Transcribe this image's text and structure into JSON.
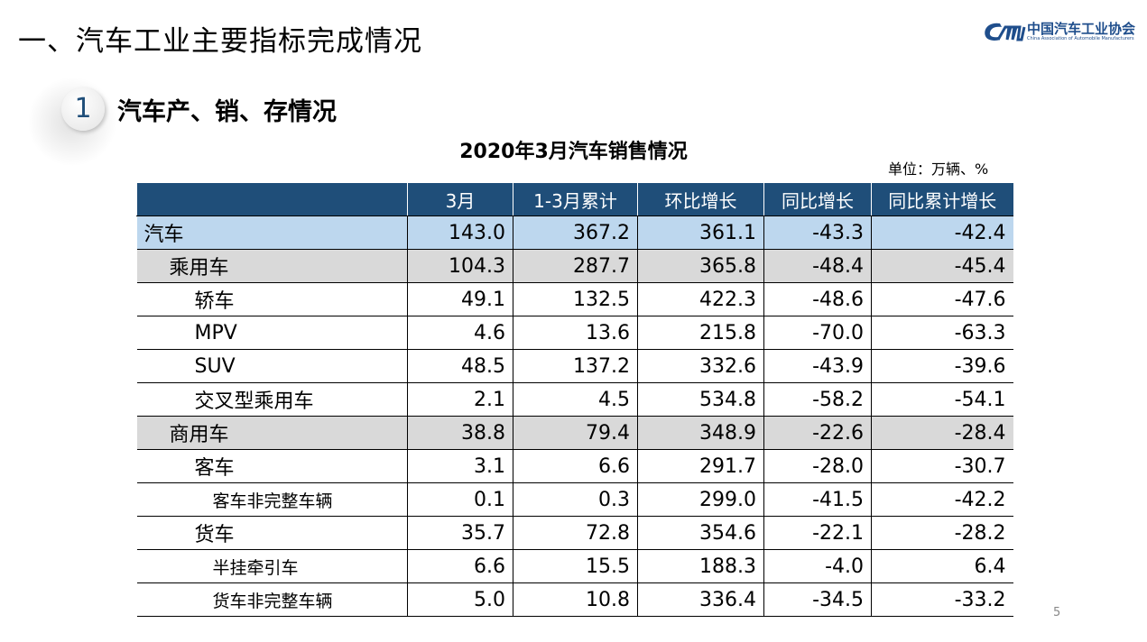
{
  "header": {
    "title": "一、汽车工业主要指标完成情况",
    "logo_cn": "中国汽车工业协会",
    "logo_en": "China Association of Automobile Manufacturers"
  },
  "section": {
    "number": "1",
    "title": "汽车产、销、存情况"
  },
  "table": {
    "title": "2020年3月汽车销售情况",
    "unit": "单位：万辆、%",
    "columns": [
      "",
      "3月",
      "1-3月累计",
      "环比增长",
      "同比增长",
      "同比累计增长"
    ],
    "rows": [
      {
        "name": "汽车",
        "level": 0,
        "values": [
          "143.0",
          "367.2",
          "361.1",
          "-43.3",
          "-42.4"
        ]
      },
      {
        "name": "乘用车",
        "level": 1,
        "values": [
          "104.3",
          "287.7",
          "365.8",
          "-48.4",
          "-45.4"
        ]
      },
      {
        "name": "轿车",
        "level": 2,
        "values": [
          "49.1",
          "132.5",
          "422.3",
          "-48.6",
          "-47.6"
        ]
      },
      {
        "name": "MPV",
        "level": 2,
        "values": [
          "4.6",
          "13.6",
          "215.8",
          "-70.0",
          "-63.3"
        ]
      },
      {
        "name": "SUV",
        "level": 2,
        "values": [
          "48.5",
          "137.2",
          "332.6",
          "-43.9",
          "-39.6"
        ]
      },
      {
        "name": "交叉型乘用车",
        "level": 2,
        "values": [
          "2.1",
          "4.5",
          "534.8",
          "-58.2",
          "-54.1"
        ]
      },
      {
        "name": "商用车",
        "level": 1,
        "values": [
          "38.8",
          "79.4",
          "348.9",
          "-22.6",
          "-28.4"
        ]
      },
      {
        "name": "客车",
        "level": 2,
        "values": [
          "3.1",
          "6.6",
          "291.7",
          "-28.0",
          "-30.7"
        ]
      },
      {
        "name": "客车非完整车辆",
        "level": 3,
        "values": [
          "0.1",
          "0.3",
          "299.0",
          "-41.5",
          "-42.2"
        ]
      },
      {
        "name": "货车",
        "level": 2,
        "values": [
          "35.7",
          "72.8",
          "354.6",
          "-22.1",
          "-28.2"
        ]
      },
      {
        "name": "半挂牵引车",
        "level": 3,
        "values": [
          "6.6",
          "15.5",
          "188.3",
          "-4.0",
          "6.4"
        ]
      },
      {
        "name": "货车非完整车辆",
        "level": 3,
        "values": [
          "5.0",
          "10.8",
          "336.4",
          "-34.5",
          "-33.2"
        ]
      }
    ]
  },
  "page_number": "5",
  "colors": {
    "header_bg": "#1f4e79",
    "total_row": "#bdd7ee",
    "subtotal_row": "#d9d9d9"
  }
}
